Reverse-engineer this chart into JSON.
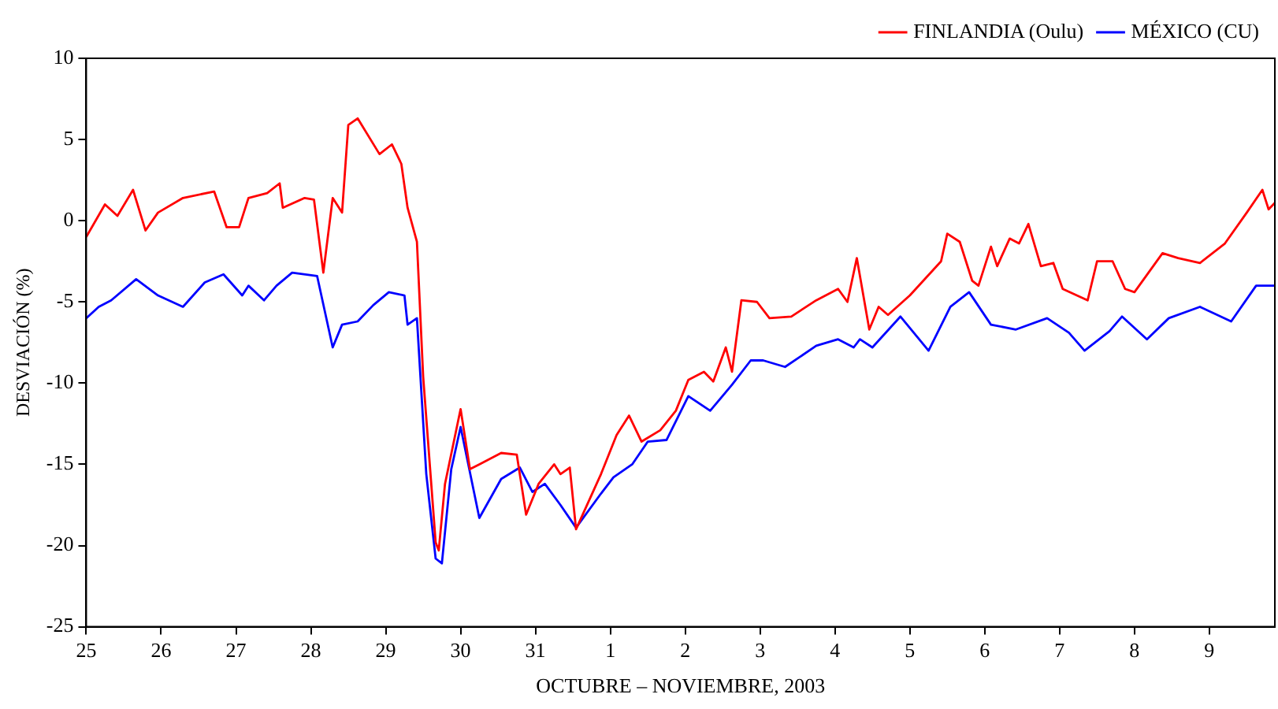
{
  "chart_data": {
    "type": "line",
    "xlabel": "OCTUBRE – NOVIEMBRE, 2003",
    "ylabel": "DESVIACIÓN (%)",
    "xlim": [
      "2003-10-25",
      "2003-11-09T21:00"
    ],
    "xticks": [
      {
        "value": "2003-10-25",
        "label": "25"
      },
      {
        "value": "2003-10-26",
        "label": "26"
      },
      {
        "value": "2003-10-27",
        "label": "27"
      },
      {
        "value": "2003-10-28",
        "label": "28"
      },
      {
        "value": "2003-10-29",
        "label": "29"
      },
      {
        "value": "2003-10-30",
        "label": "30"
      },
      {
        "value": "2003-10-31",
        "label": "31"
      },
      {
        "value": "2003-11-01",
        "label": "1"
      },
      {
        "value": "2003-11-02",
        "label": "2"
      },
      {
        "value": "2003-11-03",
        "label": "3"
      },
      {
        "value": "2003-11-04",
        "label": "4"
      },
      {
        "value": "2003-11-05",
        "label": "5"
      },
      {
        "value": "2003-11-06",
        "label": "6"
      },
      {
        "value": "2003-11-07",
        "label": "7"
      },
      {
        "value": "2003-11-08",
        "label": "8"
      },
      {
        "value": "2003-11-09",
        "label": "9"
      }
    ],
    "ylim": [
      -25,
      10
    ],
    "yticks": [
      -25,
      -20,
      -15,
      -10,
      -5,
      0,
      5,
      10
    ],
    "legend": "top right",
    "series": [
      {
        "name": "FINLANDIA (Oulu)",
        "color": "#ff0000",
        "x": [
          "2003-10-25T00:00",
          "2003-10-25T06:00",
          "2003-10-25T10:00",
          "2003-10-25T15:00",
          "2003-10-25T19:00",
          "2003-10-25T23:00",
          "2003-10-26T07:00",
          "2003-10-26T17:00",
          "2003-10-26T21:00",
          "2003-10-27T01:00",
          "2003-10-27T04:00",
          "2003-10-27T10:00",
          "2003-10-27T14:00",
          "2003-10-27T15:00",
          "2003-10-27T22:00",
          "2003-10-28T01:00",
          "2003-10-28T04:00",
          "2003-10-28T07:00",
          "2003-10-28T10:00",
          "2003-10-28T12:00",
          "2003-10-28T15:00",
          "2003-10-28T22:00",
          "2003-10-29T02:00",
          "2003-10-29T05:00",
          "2003-10-29T07:00",
          "2003-10-29T10:00",
          "2003-10-29T12:00",
          "2003-10-29T16:00",
          "2003-10-29T17:00",
          "2003-10-29T19:00",
          "2003-10-30T00:00",
          "2003-10-30T03:00",
          "2003-10-30T06:00",
          "2003-10-30T13:00",
          "2003-10-30T18:00",
          "2003-10-30T21:00",
          "2003-10-31T01:00",
          "2003-10-31T06:00",
          "2003-10-31T08:00",
          "2003-10-31T11:00",
          "2003-10-31T13:00",
          "2003-10-31T21:00",
          "2003-11-01T02:00",
          "2003-11-01T06:00",
          "2003-11-01T10:00",
          "2003-11-01T16:00",
          "2003-11-01T21:00",
          "2003-11-02T01:00",
          "2003-11-02T06:00",
          "2003-11-02T09:00",
          "2003-11-02T13:00",
          "2003-11-02T15:00",
          "2003-11-02T18:00",
          "2003-11-02T23:00",
          "2003-11-03T03:00",
          "2003-11-03T10:00",
          "2003-11-03T18:00",
          "2003-11-04T01:00",
          "2003-11-04T04:00",
          "2003-11-04T07:00",
          "2003-11-04T11:00",
          "2003-11-04T14:00",
          "2003-11-04T17:00",
          "2003-11-05T00:00",
          "2003-11-05T10:00",
          "2003-11-05T12:00",
          "2003-11-05T16:00",
          "2003-11-05T20:00",
          "2003-11-05T22:00",
          "2003-11-06T02:00",
          "2003-11-06T04:00",
          "2003-11-06T08:00",
          "2003-11-06T11:00",
          "2003-11-06T14:00",
          "2003-11-06T18:00",
          "2003-11-06T22:00",
          "2003-11-07T01:00",
          "2003-11-07T09:00",
          "2003-11-07T12:00",
          "2003-11-07T17:00",
          "2003-11-07T21:00",
          "2003-11-08T00:00",
          "2003-11-08T09:00",
          "2003-11-08T14:00",
          "2003-11-08T21:00",
          "2003-11-09T05:00",
          "2003-11-09T12:00",
          "2003-11-09T17:00",
          "2003-11-09T19:00",
          "2003-11-09T21:00"
        ],
        "values": [
          -1.0,
          1.0,
          0.3,
          1.9,
          -0.6,
          0.5,
          1.4,
          1.8,
          -0.4,
          -0.4,
          1.4,
          1.7,
          2.3,
          0.8,
          1.4,
          1.3,
          -3.2,
          1.4,
          0.5,
          5.9,
          6.3,
          4.1,
          4.7,
          3.5,
          0.8,
          -1.3,
          -9.6,
          -19.8,
          -20.3,
          -16.2,
          -11.6,
          -15.3,
          -15.0,
          -14.3,
          -14.4,
          -18.1,
          -16.2,
          -15.0,
          -15.6,
          -15.2,
          -19.0,
          -15.6,
          -13.2,
          -12.0,
          -13.6,
          -12.9,
          -11.7,
          -9.8,
          -9.3,
          -9.9,
          -7.8,
          -9.3,
          -4.9,
          -5.0,
          -6.0,
          -5.9,
          -4.9,
          -4.2,
          -5.0,
          -2.3,
          -6.7,
          -5.3,
          -5.8,
          -4.6,
          -2.5,
          -0.8,
          -1.3,
          -3.7,
          -4.0,
          -1.6,
          -2.8,
          -1.1,
          -1.4,
          -0.2,
          -2.8,
          -2.6,
          -4.2,
          -4.9,
          -2.5,
          -2.5,
          -4.2,
          -4.4,
          -2.0,
          -2.3,
          -2.6,
          -1.4,
          0.5,
          1.9,
          0.7,
          1.1
        ]
      },
      {
        "name": "MÉXICO (CU)",
        "color": "#0000ff",
        "x": [
          "2003-10-25T00:00",
          "2003-10-25T04:00",
          "2003-10-25T08:00",
          "2003-10-25T16:00",
          "2003-10-25T23:00",
          "2003-10-26T07:00",
          "2003-10-26T14:00",
          "2003-10-26T20:00",
          "2003-10-27T02:00",
          "2003-10-27T04:00",
          "2003-10-27T09:00",
          "2003-10-27T13:00",
          "2003-10-27T18:00",
          "2003-10-28T02:00",
          "2003-10-28T07:00",
          "2003-10-28T10:00",
          "2003-10-28T15:00",
          "2003-10-28T20:00",
          "2003-10-29T01:00",
          "2003-10-29T06:00",
          "2003-10-29T07:00",
          "2003-10-29T10:00",
          "2003-10-29T13:00",
          "2003-10-29T16:00",
          "2003-10-29T18:00",
          "2003-10-29T21:00",
          "2003-10-30T00:00",
          "2003-10-30T06:00",
          "2003-10-30T13:00",
          "2003-10-30T19:00",
          "2003-10-30T23:00",
          "2003-10-31T03:00",
          "2003-10-31T08:00",
          "2003-10-31T13:00",
          "2003-10-31T21:00",
          "2003-11-01T01:00",
          "2003-11-01T07:00",
          "2003-11-01T12:00",
          "2003-11-01T18:00",
          "2003-11-02T01:00",
          "2003-11-02T08:00",
          "2003-11-02T15:00",
          "2003-11-02T21:00",
          "2003-11-03T01:00",
          "2003-11-03T08:00",
          "2003-11-03T18:00",
          "2003-11-04T01:00",
          "2003-11-04T06:00",
          "2003-11-04T08:00",
          "2003-11-04T12:00",
          "2003-11-04T21:00",
          "2003-11-05T06:00",
          "2003-11-05T13:00",
          "2003-11-05T19:00",
          "2003-11-06T02:00",
          "2003-11-06T10:00",
          "2003-11-06T20:00",
          "2003-11-07T03:00",
          "2003-11-07T08:00",
          "2003-11-07T16:00",
          "2003-11-07T20:00",
          "2003-11-08T04:00",
          "2003-11-08T11:00",
          "2003-11-08T21:00",
          "2003-11-09T07:00",
          "2003-11-09T15:00",
          "2003-11-09T21:00"
        ],
        "values": [
          -6.0,
          -5.3,
          -4.9,
          -3.6,
          -4.6,
          -5.3,
          -3.8,
          -3.3,
          -4.6,
          -4.0,
          -4.9,
          -4.0,
          -3.2,
          -3.4,
          -7.8,
          -6.4,
          -6.2,
          -5.2,
          -4.4,
          -4.6,
          -6.4,
          -6.0,
          -15.6,
          -20.8,
          -21.1,
          -15.3,
          -12.7,
          -18.3,
          -15.9,
          -15.2,
          -16.7,
          -16.2,
          -17.5,
          -18.9,
          -16.8,
          -15.8,
          -15.0,
          -13.6,
          -13.5,
          -10.8,
          -11.7,
          -10.1,
          -8.6,
          -8.6,
          -9.0,
          -7.7,
          -7.3,
          -7.8,
          -7.3,
          -7.8,
          -5.9,
          -8.0,
          -5.3,
          -4.4,
          -6.4,
          -6.7,
          -6.0,
          -6.9,
          -8.0,
          -6.8,
          -5.9,
          -7.3,
          -6.0,
          -5.3,
          -6.2,
          -4.0,
          -4.0
        ]
      }
    ]
  }
}
